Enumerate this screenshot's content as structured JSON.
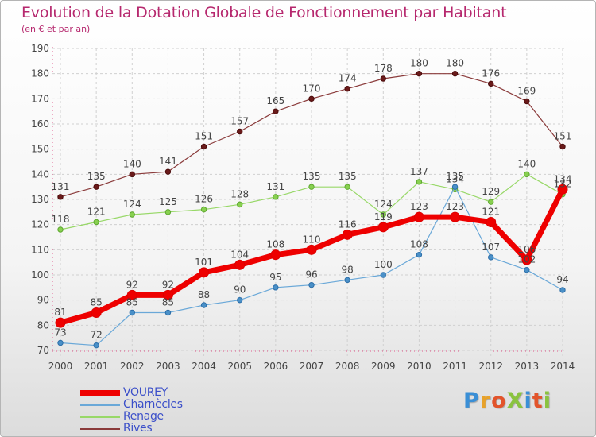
{
  "title": "Evolution de la Dotation Globale de Fonctionnement par Habitant",
  "subtitle": "(en € et par an)",
  "logo": {
    "text": "ProXiti",
    "letters": [
      "P",
      "r",
      "o",
      "X",
      "i",
      "t",
      "i"
    ],
    "colors": [
      "#3a8fd6",
      "#e8a22a",
      "#e2542b",
      "#8ac33f",
      "#3a8fd6",
      "#e2542b",
      "#8ac33f"
    ]
  },
  "chart_data": {
    "type": "line",
    "x": [
      "2000",
      "2001",
      "2002",
      "2003",
      "2004",
      "2005",
      "2006",
      "2007",
      "2008",
      "2009",
      "2010",
      "2011",
      "2012",
      "2013",
      "2014"
    ],
    "ylim": [
      70,
      190
    ],
    "yticks": [
      70,
      80,
      90,
      100,
      110,
      120,
      130,
      140,
      150,
      160,
      170,
      180,
      190
    ],
    "grid": true,
    "legend_position": "bottom-left",
    "series": [
      {
        "name": "VOUREY",
        "color": "#ee0000",
        "values": [
          81,
          85,
          92,
          92,
          101,
          104,
          108,
          110,
          116,
          119,
          123,
          123,
          121,
          106,
          134
        ],
        "labels": [
          "81",
          "85",
          "92",
          "92",
          "101",
          "104",
          "108",
          "110",
          "116",
          "119",
          "123",
          "123",
          "121",
          "106",
          "134"
        ]
      },
      {
        "name": "Charnècles",
        "color": "#4a90c8",
        "values": [
          73,
          72,
          85,
          85,
          88,
          90,
          95,
          96,
          98,
          100,
          108,
          135,
          107,
          102,
          94
        ],
        "labels": [
          "73",
          "72",
          "85",
          "85",
          "88",
          "90",
          "95",
          "96",
          "98",
          "100",
          "108",
          "135",
          "107",
          "102",
          "94"
        ]
      },
      {
        "name": "Renage",
        "color": "#88d050",
        "values": [
          118,
          121,
          124,
          125,
          126,
          128,
          131,
          135,
          135,
          124,
          137,
          134,
          129,
          140,
          132
        ],
        "labels": [
          "118",
          "121",
          "124",
          "125",
          "126",
          "128",
          "131",
          "135",
          "135",
          "124",
          "137",
          "134",
          "129",
          "140",
          "132"
        ]
      },
      {
        "name": "Rives",
        "color": "#7a2a2a",
        "values": [
          131,
          135,
          140,
          141,
          151,
          157,
          165,
          170,
          174,
          178,
          180,
          180,
          176,
          169,
          151
        ],
        "labels": [
          "131",
          "135",
          "140",
          "141",
          "151",
          "157",
          "165",
          "170",
          "174",
          "178",
          "180",
          "180",
          "176",
          "169",
          "151"
        ]
      }
    ]
  }
}
